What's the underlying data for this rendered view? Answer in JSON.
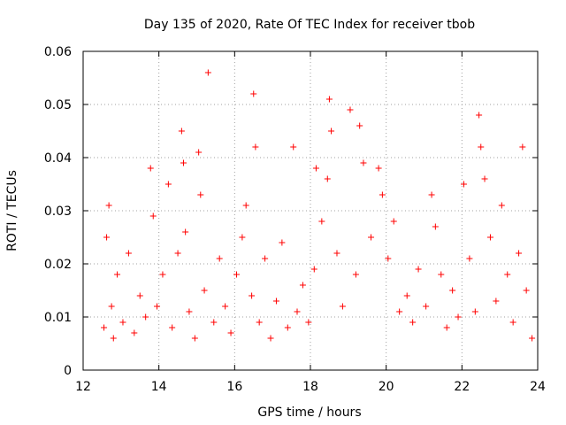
{
  "chart_data": {
    "type": "scatter",
    "title": "Day 135 of 2020, Rate Of TEC Index for receiver tbob",
    "xlabel": "GPS time / hours",
    "ylabel": "ROTI / TECUs",
    "xlim": [
      12,
      24
    ],
    "ylim": [
      0,
      0.06
    ],
    "xticks": [
      12,
      14,
      16,
      18,
      20,
      22,
      24
    ],
    "yticks": [
      0,
      0.01,
      0.02,
      0.03,
      0.04,
      0.05,
      0.06
    ],
    "xtick_labels": [
      "12",
      "14",
      "16",
      "18",
      "20",
      "22",
      "24"
    ],
    "ytick_labels": [
      "0",
      "0.01",
      "0.02",
      "0.03",
      "0.04",
      "0.05",
      "0.06"
    ],
    "grid": true,
    "marker": "plus",
    "color": "#ff0000",
    "series": [
      {
        "x": [
          12.55,
          12.62,
          12.68,
          12.75,
          12.8,
          12.9,
          13.05,
          13.2,
          13.35,
          13.5,
          13.65,
          13.78,
          13.85,
          13.95,
          14.1,
          14.25,
          14.35,
          14.5,
          14.6,
          14.65,
          14.7,
          14.8,
          14.95,
          15.05,
          15.1,
          15.2,
          15.3,
          15.45,
          15.6,
          15.75,
          15.9,
          16.05,
          16.2,
          16.3,
          16.45,
          16.5,
          16.55,
          16.65,
          16.8,
          16.95,
          17.1,
          17.25,
          17.4,
          17.55,
          17.65,
          17.8,
          17.95,
          18.1,
          18.15,
          18.3,
          18.45,
          18.5,
          18.55,
          18.7,
          18.85,
          19.05,
          19.2,
          19.3,
          19.4,
          19.6,
          19.8,
          19.9,
          20.05,
          20.2,
          20.35,
          20.55,
          20.7,
          20.85,
          21.05,
          21.2,
          21.3,
          21.45,
          21.6,
          21.75,
          21.9,
          22.05,
          22.2,
          22.35,
          22.45,
          22.5,
          22.6,
          22.75,
          22.9,
          23.05,
          23.2,
          23.35,
          23.5,
          23.6,
          23.7,
          23.85
        ],
        "y": [
          0.008,
          0.025,
          0.031,
          0.012,
          0.006,
          0.018,
          0.009,
          0.022,
          0.007,
          0.014,
          0.01,
          0.038,
          0.029,
          0.012,
          0.018,
          0.035,
          0.008,
          0.022,
          0.045,
          0.039,
          0.026,
          0.011,
          0.006,
          0.041,
          0.033,
          0.015,
          0.056,
          0.009,
          0.021,
          0.012,
          0.007,
          0.018,
          0.025,
          0.031,
          0.014,
          0.052,
          0.042,
          0.009,
          0.021,
          0.006,
          0.013,
          0.024,
          0.008,
          0.042,
          0.011,
          0.016,
          0.009,
          0.019,
          0.038,
          0.028,
          0.036,
          0.051,
          0.045,
          0.022,
          0.012,
          0.049,
          0.018,
          0.046,
          0.039,
          0.025,
          0.038,
          0.033,
          0.021,
          0.028,
          0.011,
          0.014,
          0.009,
          0.019,
          0.012,
          0.033,
          0.027,
          0.018,
          0.008,
          0.015,
          0.01,
          0.035,
          0.021,
          0.011,
          0.048,
          0.042,
          0.036,
          0.025,
          0.013,
          0.031,
          0.018,
          0.009,
          0.022,
          0.042,
          0.015,
          0.006
        ]
      }
    ]
  }
}
